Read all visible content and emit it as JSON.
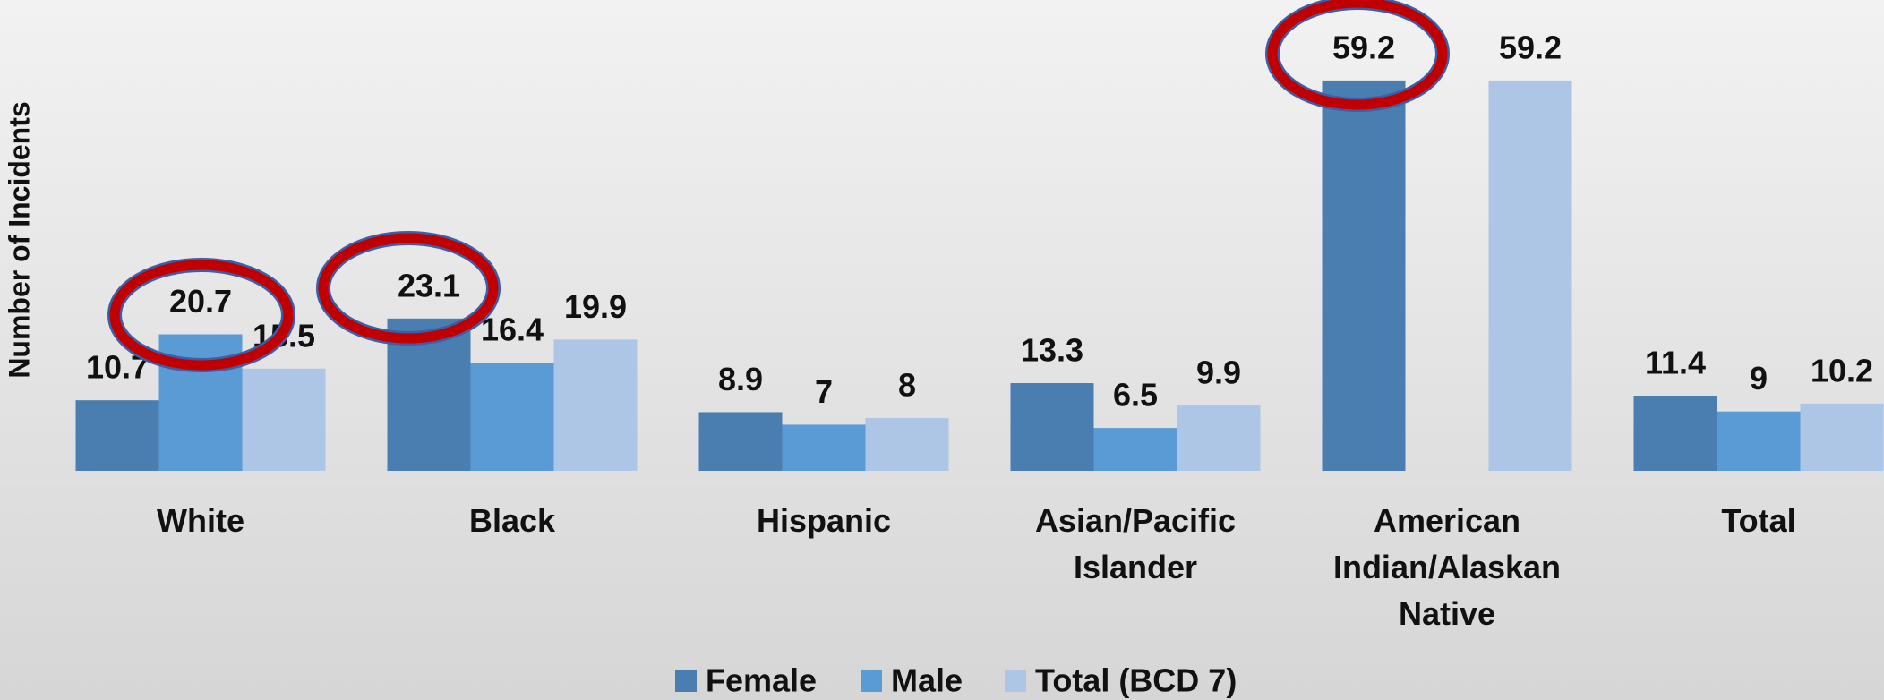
{
  "chart_data": {
    "type": "bar",
    "y_axis_label": "Number of Incidents",
    "categories": [
      "White",
      "Black",
      "Hispanic",
      "Asian/Pacific Islander",
      "American Indian/Alaskan Native",
      "Total"
    ],
    "series": [
      {
        "name": "Female",
        "color": "#4a7eb0",
        "values": [
          10.7,
          23.1,
          8.9,
          13.3,
          59.2,
          11.4
        ]
      },
      {
        "name": "Male",
        "color": "#5b9bd5",
        "values": [
          20.7,
          16.4,
          7,
          6.5,
          null,
          9
        ]
      },
      {
        "name": "Total (BCD 7)",
        "color": "#adc6e5",
        "values": [
          15.5,
          19.9,
          8,
          9.9,
          59.2,
          10.2
        ]
      }
    ],
    "ylim": [
      0,
      60
    ],
    "legend": "bottom"
  }
}
